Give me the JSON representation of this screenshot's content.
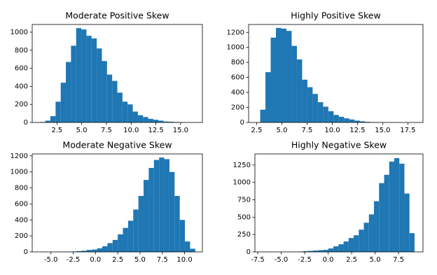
{
  "chart_data": [
    {
      "type": "histogram",
      "title": "Moderate Positive Skew",
      "color": "#1f77b4",
      "bins": [
        0.8,
        1.32,
        1.84,
        2.36,
        2.88,
        3.4,
        3.92,
        4.44,
        4.96,
        5.48,
        6.0,
        6.52,
        7.04,
        7.56,
        8.08,
        8.6,
        9.12,
        9.64,
        10.16,
        10.68,
        11.2,
        11.72,
        12.24,
        12.76,
        13.28,
        13.8,
        14.32,
        14.84,
        15.36,
        15.88,
        16.4
      ],
      "counts": [
        5,
        20,
        70,
        230,
        440,
        670,
        850,
        1045,
        1030,
        960,
        930,
        820,
        680,
        530,
        460,
        330,
        230,
        200,
        120,
        80,
        60,
        40,
        30,
        20,
        10,
        8,
        5,
        3,
        1,
        2
      ],
      "xlim": [
        0,
        17.2
      ],
      "ylim": [
        0,
        1085
      ],
      "xticks": [
        2.5,
        {
          "value": 5,
          "label": "5.0"
        },
        7.5,
        {
          "value": 10,
          "label": "10.0"
        },
        12.5,
        {
          "value": 15,
          "label": "15.0"
        }
      ],
      "yticks": [
        0,
        200,
        400,
        600,
        800,
        1000
      ]
    },
    {
      "type": "histogram",
      "title": "Highly Positive Skew",
      "color": "#1f77b4",
      "bins": [
        2.85,
        3.37,
        3.89,
        4.41,
        4.93,
        5.45,
        5.97,
        6.49,
        7.01,
        7.53,
        8.05,
        8.57,
        9.09,
        9.61,
        10.13,
        10.65,
        11.17,
        11.69,
        12.21,
        12.73,
        13.25,
        13.77,
        14.29,
        14.81,
        15.33,
        15.85,
        16.37,
        16.89,
        17.41,
        17.93,
        18.45
      ],
      "counts": [
        170,
        670,
        1130,
        1260,
        1250,
        1220,
        1020,
        840,
        570,
        470,
        380,
        270,
        210,
        150,
        100,
        75,
        55,
        40,
        25,
        15,
        8,
        5,
        3,
        2,
        1,
        1,
        0,
        0,
        0,
        1
      ],
      "xlim": [
        1.7,
        19.0
      ],
      "ylim": [
        0,
        1305
      ],
      "xticks": [
        2.5,
        {
          "value": 5,
          "label": "5.0"
        },
        7.5,
        {
          "value": 10,
          "label": "10.0"
        },
        12.5,
        {
          "value": 15,
          "label": "15.0"
        },
        17.5
      ],
      "yticks": [
        0,
        200,
        400,
        600,
        800,
        1000,
        1200
      ]
    },
    {
      "type": "histogram",
      "title": "Moderate Negative Skew",
      "color": "#1f77b4",
      "bins": [
        -6.2,
        -5.62,
        -5.04,
        -4.46,
        -3.88,
        -3.3,
        -2.72,
        -2.14,
        -1.56,
        -0.98,
        -0.4,
        0.18,
        0.76,
        1.34,
        1.92,
        2.5,
        3.08,
        3.66,
        4.24,
        4.82,
        5.4,
        5.98,
        6.56,
        7.14,
        7.72,
        8.3,
        8.88,
        9.46,
        10.04,
        10.62,
        11.2
      ],
      "counts": [
        1,
        0,
        0,
        1,
        2,
        3,
        5,
        10,
        15,
        25,
        30,
        45,
        70,
        110,
        150,
        220,
        300,
        390,
        530,
        700,
        900,
        1050,
        1150,
        1180,
        1160,
        1000,
        700,
        400,
        130,
        40
      ],
      "xlim": [
        -7.1,
        12.0
      ],
      "ylim": [
        0,
        1225
      ],
      "xticks": [
        {
          "value": -5,
          "label": "-5.0"
        },
        -2.5,
        {
          "value": 0,
          "label": "0.0"
        },
        2.5,
        {
          "value": 5,
          "label": "5.0"
        },
        7.5,
        {
          "value": 10,
          "label": "10.0"
        }
      ],
      "yticks": [
        0,
        200,
        400,
        600,
        800,
        1000,
        1200
      ]
    },
    {
      "type": "histogram",
      "title": "Highly Negative Skew",
      "color": "#1f77b4",
      "bins": [
        -7.0,
        -6.46,
        -5.92,
        -5.38,
        -4.84,
        -4.3,
        -3.76,
        -3.22,
        -2.68,
        -2.14,
        -1.6,
        -1.06,
        -0.52,
        0.02,
        0.56,
        1.1,
        1.64,
        2.18,
        2.72,
        3.26,
        3.8,
        4.34,
        4.88,
        5.42,
        5.96,
        6.5,
        7.04,
        7.58,
        8.12,
        8.66,
        9.2
      ],
      "counts": [
        1,
        0,
        0,
        0,
        1,
        2,
        3,
        5,
        10,
        15,
        20,
        25,
        30,
        50,
        80,
        110,
        150,
        200,
        240,
        320,
        420,
        540,
        730,
        990,
        1110,
        1300,
        1350,
        1270,
        840,
        270
      ],
      "xlim": [
        -7.8,
        10.1
      ],
      "ylim": [
        0,
        1410
      ],
      "xticks": [
        -7.5,
        {
          "value": -5,
          "label": "-5.0"
        },
        -2.5,
        {
          "value": 0,
          "label": "0.0"
        },
        2.5,
        {
          "value": 5,
          "label": "5.0"
        },
        7.5
      ],
      "yticks": [
        0,
        250,
        500,
        750,
        1000,
        1250
      ]
    }
  ]
}
